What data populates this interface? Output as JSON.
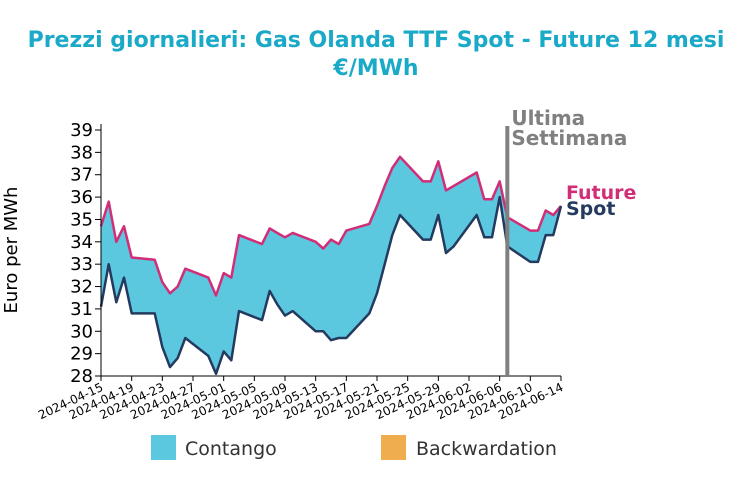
{
  "chart_data": {
    "type": "area",
    "title": "Prezzi giornalieri: Gas Olanda TTF Spot - Future 12 mesi",
    "subtitle": "€/MWh",
    "xlabel": "",
    "ylabel": "Euro per MWh",
    "ylim": [
      28,
      39
    ],
    "yticks": [
      28,
      29,
      30,
      31,
      32,
      33,
      34,
      35,
      36,
      37,
      38,
      39
    ],
    "xlim": [
      "2024-04-15",
      "2024-06-14"
    ],
    "xticks": [
      "2024-04-15",
      "2024-04-19",
      "2024-04-23",
      "2024-04-27",
      "2024-05-01",
      "2024-05-05",
      "2024-05-09",
      "2024-05-13",
      "2024-05-17",
      "2024-05-21",
      "2024-05-25",
      "2024-05-29",
      "2024-06-02",
      "2024-06-06",
      "2024-06-10",
      "2024-06-14"
    ],
    "grid": false,
    "legend_position": "bottom",
    "legend": [
      {
        "name": "Contango",
        "color": "#5bc8df"
      },
      {
        "name": "Backwardation",
        "color": "#f0ad4e"
      }
    ],
    "annotation": {
      "date": "2024-06-07",
      "lines": [
        "Ultima",
        "Settimana"
      ],
      "color": "#808080"
    },
    "colors": {
      "title": "#1aa9c7",
      "future": "#d12e78",
      "spot": "#243a5e",
      "contango": "#5bc8df",
      "backwardation": "#f0ad4e"
    },
    "x": [
      "2024-04-15",
      "2024-04-16",
      "2024-04-17",
      "2024-04-18",
      "2024-04-19",
      "2024-04-22",
      "2024-04-23",
      "2024-04-24",
      "2024-04-25",
      "2024-04-26",
      "2024-04-29",
      "2024-04-30",
      "2024-05-01",
      "2024-05-02",
      "2024-05-03",
      "2024-05-06",
      "2024-05-07",
      "2024-05-08",
      "2024-05-09",
      "2024-05-10",
      "2024-05-13",
      "2024-05-14",
      "2024-05-15",
      "2024-05-16",
      "2024-05-17",
      "2024-05-20",
      "2024-05-21",
      "2024-05-22",
      "2024-05-23",
      "2024-05-24",
      "2024-05-27",
      "2024-05-28",
      "2024-05-29",
      "2024-05-30",
      "2024-05-31",
      "2024-06-03",
      "2024-06-04",
      "2024-06-05",
      "2024-06-06",
      "2024-06-07",
      "2024-06-10",
      "2024-06-11",
      "2024-06-12",
      "2024-06-13",
      "2024-06-14"
    ],
    "series": [
      {
        "name": "Future",
        "values": [
          34.7,
          35.8,
          34.0,
          34.7,
          33.3,
          33.2,
          32.2,
          31.7,
          32.0,
          32.8,
          32.4,
          31.6,
          32.6,
          32.4,
          34.3,
          33.9,
          34.6,
          34.4,
          34.2,
          34.4,
          34.0,
          33.7,
          34.1,
          33.9,
          34.5,
          34.8,
          35.6,
          36.5,
          37.3,
          37.8,
          36.7,
          36.7,
          37.6,
          36.3,
          36.5,
          37.1,
          35.9,
          35.9,
          36.7,
          35.1,
          34.5,
          34.5,
          35.4,
          35.2,
          35.6
        ]
      },
      {
        "name": "Spot",
        "values": [
          31.1,
          33.0,
          31.3,
          32.4,
          30.8,
          30.8,
          29.3,
          28.4,
          28.8,
          29.7,
          28.9,
          28.1,
          29.1,
          28.7,
          30.9,
          30.5,
          31.8,
          31.2,
          30.7,
          30.9,
          30.0,
          30.0,
          29.6,
          29.7,
          29.7,
          30.8,
          31.7,
          33.0,
          34.3,
          35.2,
          34.1,
          34.1,
          35.2,
          33.5,
          33.8,
          35.2,
          34.2,
          34.2,
          36.0,
          33.8,
          33.1,
          33.1,
          34.3,
          34.3,
          35.6
        ]
      }
    ],
    "end_labels": [
      "Future",
      "Spot"
    ]
  }
}
